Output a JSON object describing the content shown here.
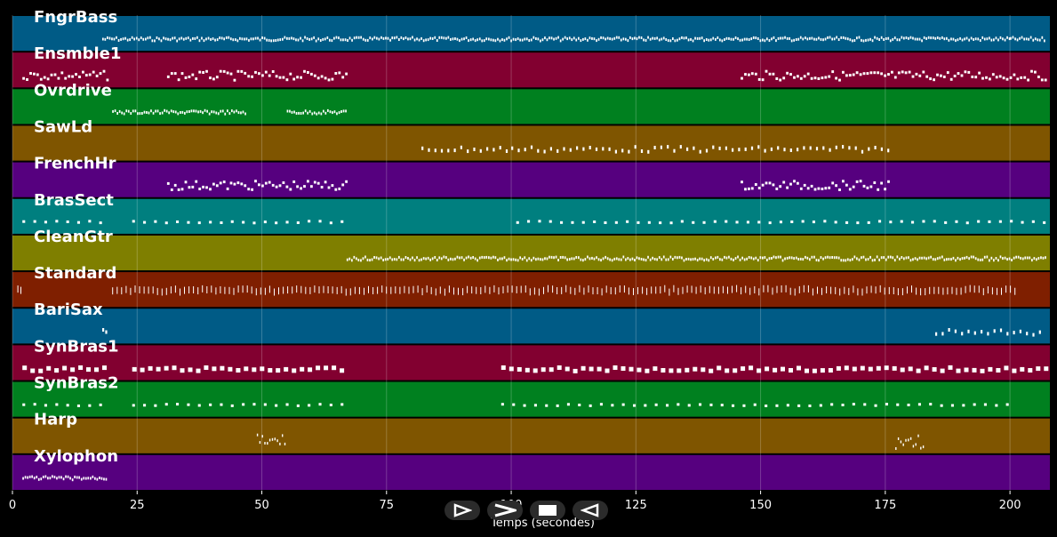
{
  "chart_data": {
    "type": "piano-roll",
    "xlabel": "Temps (secondes)",
    "xlim": [
      0,
      208
    ],
    "x_ticks": [
      0,
      25,
      50,
      75,
      100,
      125,
      150,
      175,
      200
    ],
    "grid": "on (vertical)",
    "tracks": [
      {
        "name": "FngrBass",
        "color": "#005b86",
        "segments": [
          [
            18,
            76
          ],
          [
            76,
            200
          ],
          [
            200,
            207
          ]
        ],
        "pattern": "dense"
      },
      {
        "name": "Ensmble1",
        "color": "#820030",
        "segments": [
          [
            2,
            19
          ],
          [
            31,
            67
          ],
          [
            146,
            207
          ]
        ],
        "pattern": "phrase"
      },
      {
        "name": "Ovrdrive",
        "color": "#00801f",
        "segments": [
          [
            20,
            47
          ],
          [
            55,
            67
          ]
        ],
        "pattern": "dense"
      },
      {
        "name": "SawLd",
        "color": "#7f5500",
        "segments": [
          [
            82,
            100
          ],
          [
            100,
            176
          ]
        ],
        "pattern": "sparse"
      },
      {
        "name": "FrenchHr",
        "color": "#56007f",
        "segments": [
          [
            31,
            67
          ],
          [
            146,
            176
          ]
        ],
        "pattern": "phrase"
      },
      {
        "name": "BrasSect",
        "color": "#007f7f",
        "segments": [
          [
            2,
            19
          ],
          [
            24,
            67
          ],
          [
            101,
            207
          ]
        ],
        "pattern": "dashes"
      },
      {
        "name": "CleanGtr",
        "color": "#7f7f00",
        "segments": [
          [
            67,
            207
          ]
        ],
        "pattern": "dense"
      },
      {
        "name": "Standard",
        "color": "#7f1f00",
        "segments": [
          [
            1,
            2
          ],
          [
            20,
            201
          ]
        ],
        "pattern": "drums"
      },
      {
        "name": "BariSax",
        "color": "#005b86",
        "segments": [
          [
            18,
            19
          ],
          [
            185,
            207
          ]
        ],
        "pattern": "sparse"
      },
      {
        "name": "SynBras1",
        "color": "#820030",
        "segments": [
          [
            2,
            19
          ],
          [
            24,
            67
          ],
          [
            98,
            207
          ]
        ],
        "pattern": "blocks"
      },
      {
        "name": "SynBras2",
        "color": "#00801f",
        "segments": [
          [
            2,
            19
          ],
          [
            24,
            67
          ],
          [
            98,
            200
          ]
        ],
        "pattern": "dashes"
      },
      {
        "name": "Harp",
        "color": "#7f5500",
        "segments": [
          [
            49,
            55
          ],
          [
            177,
            183
          ]
        ],
        "pattern": "arp"
      },
      {
        "name": "Xylophon",
        "color": "#56007f",
        "segments": [
          [
            2,
            19
          ]
        ],
        "pattern": "dense"
      }
    ]
  },
  "controls": {
    "play_icon": "play-icon",
    "fast_forward_icon": "fast-forward-icon",
    "stop_icon": "stop-icon",
    "rewind_icon": "rewind-icon"
  }
}
